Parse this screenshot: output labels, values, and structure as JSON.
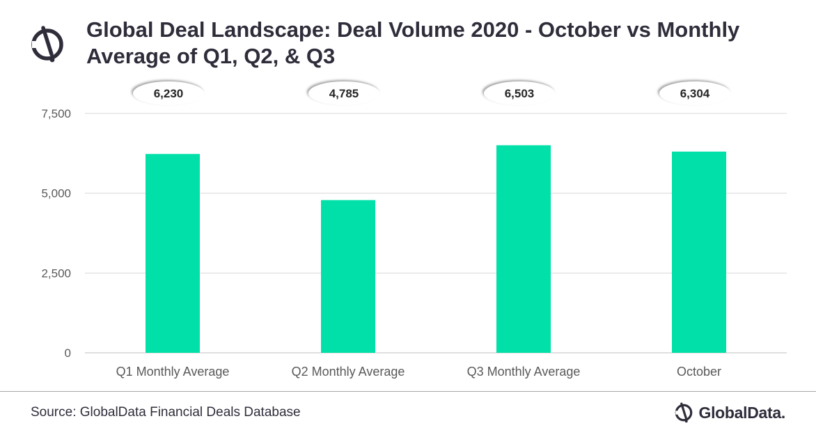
{
  "header": {
    "title": "Global Deal Landscape: Deal Volume 2020 - October vs Monthly Average of Q1, Q2, & Q3"
  },
  "footer": {
    "source": "Source: GlobalData Financial Deals Database",
    "brand": "GlobalData."
  },
  "colors": {
    "bar": "#00e0a8",
    "grid": "#d9d9d9",
    "text": "#2f2d3a"
  },
  "chart_data": {
    "type": "bar",
    "title": "Global Deal Landscape: Deal Volume 2020 - October vs Monthly Average of Q1, Q2, & Q3",
    "categories": [
      "Q1 Monthly Average",
      "Q2 Monthly Average",
      "Q3 Monthly Average",
      "October"
    ],
    "values": [
      6230,
      4785,
      6503,
      6304
    ],
    "value_labels": [
      "6,230",
      "4,785",
      "6,503",
      "6,304"
    ],
    "ylim": [
      0,
      7500
    ],
    "yticks": [
      0,
      2500,
      5000,
      7500
    ],
    "ytick_labels": [
      "0",
      "2,500",
      "5,000",
      "7,500"
    ],
    "grid": true,
    "legend": "none"
  }
}
